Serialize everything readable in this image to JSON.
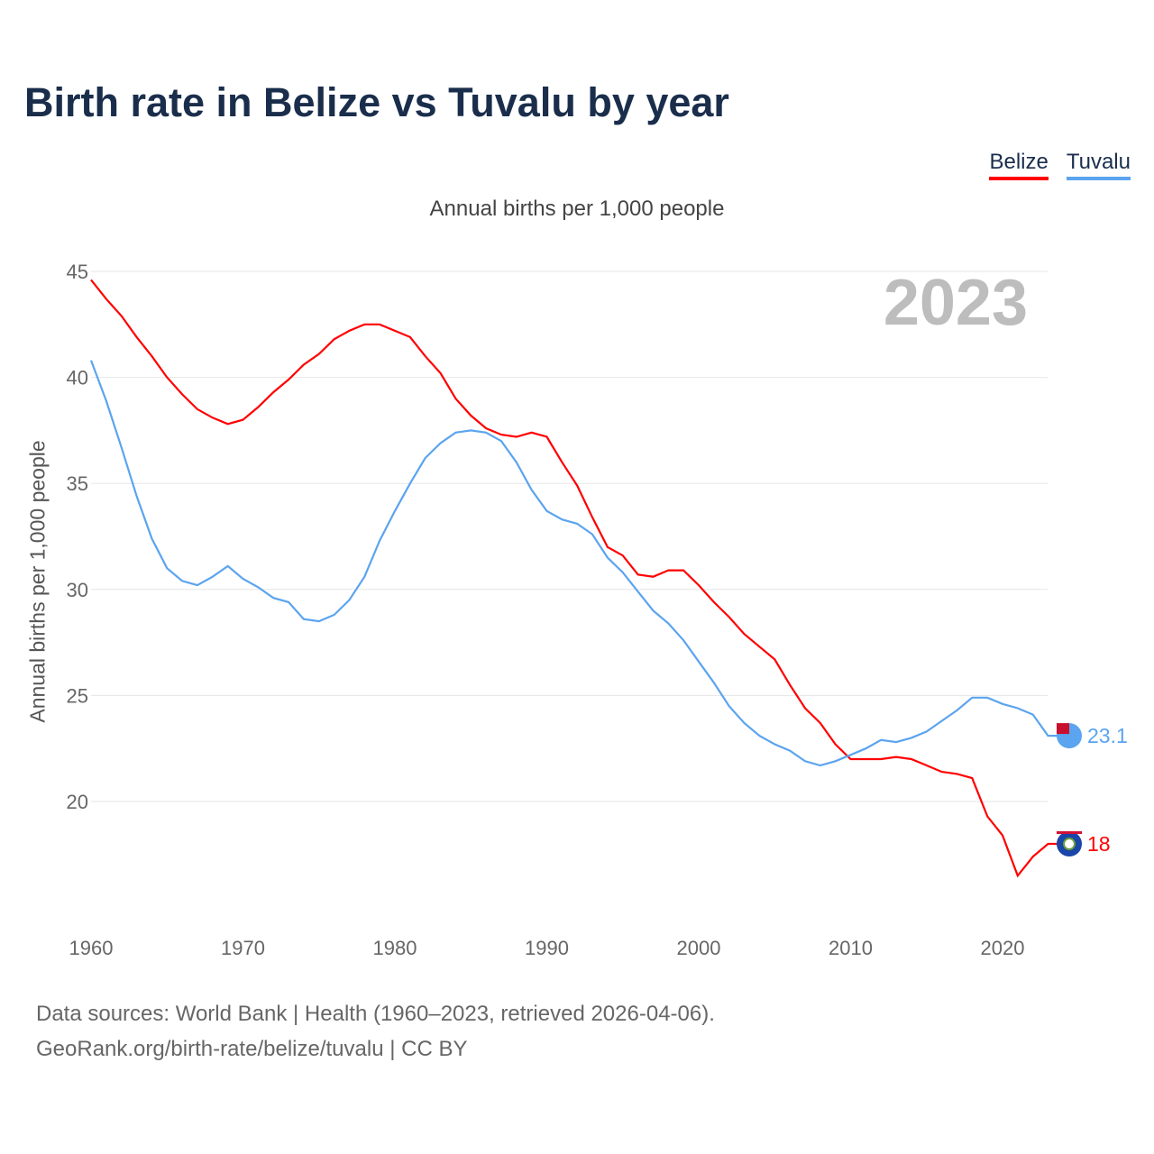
{
  "title": "Birth rate in Belize vs Tuvalu by year",
  "legend": [
    {
      "label": "Belize",
      "color": "#ff0000"
    },
    {
      "label": "Tuvalu",
      "color": "#5ba4ef"
    }
  ],
  "subtitle": "Annual births per 1,000 people",
  "year_label": "2023",
  "source_line1": "Data sources: World Bank | Health (1960–2023, retrieved 2026-04-06).",
  "source_line2": "GeoRank.org/birth-rate/belize/tuvalu | CC BY",
  "end_labels": {
    "belize": "18",
    "tuvalu": "23.1"
  },
  "chart_data": {
    "type": "line",
    "title": "Birth rate in Belize vs Tuvalu by year",
    "xlabel": "",
    "ylabel": "Annual births per 1,000 people",
    "xlim": [
      1960,
      2023
    ],
    "ylim": [
      15,
      45
    ],
    "xticks": [
      1960,
      1970,
      1980,
      1990,
      2000,
      2010,
      2020
    ],
    "yticks": [
      20,
      25,
      30,
      35,
      40,
      45
    ],
    "x_start": 1960,
    "series": [
      {
        "name": "Belize",
        "color": "#ff0000",
        "values": [
          44.6,
          43.7,
          42.9,
          41.9,
          41.0,
          40.0,
          39.2,
          38.5,
          38.1,
          37.8,
          38.0,
          38.6,
          39.3,
          39.9,
          40.6,
          41.1,
          41.8,
          42.2,
          42.5,
          42.5,
          42.2,
          41.9,
          41.0,
          40.2,
          39.0,
          38.2,
          37.6,
          37.3,
          37.2,
          37.4,
          37.2,
          36.0,
          34.9,
          33.4,
          32.0,
          31.6,
          30.7,
          30.6,
          30.9,
          30.9,
          30.2,
          29.4,
          28.7,
          27.9,
          27.3,
          26.7,
          25.5,
          24.4,
          23.7,
          22.7,
          22.0,
          22.0,
          22.0,
          22.1,
          22.0,
          21.7,
          21.4,
          21.3,
          21.1,
          19.3,
          18.4,
          16.5,
          17.4,
          18.0
        ]
      },
      {
        "name": "Tuvalu",
        "color": "#5ba4ef",
        "values": [
          40.8,
          38.9,
          36.7,
          34.4,
          32.4,
          31.0,
          30.4,
          30.2,
          30.6,
          31.1,
          30.5,
          30.1,
          29.6,
          29.4,
          28.6,
          28.5,
          28.8,
          29.5,
          30.6,
          32.3,
          33.7,
          35.0,
          36.2,
          36.9,
          37.4,
          37.5,
          37.4,
          37.0,
          36.0,
          34.7,
          33.7,
          33.3,
          33.1,
          32.6,
          31.5,
          30.8,
          29.9,
          29.0,
          28.4,
          27.6,
          26.6,
          25.6,
          24.5,
          23.7,
          23.1,
          22.7,
          22.4,
          21.9,
          21.7,
          21.9,
          22.2,
          22.5,
          22.9,
          22.8,
          23.0,
          23.3,
          23.8,
          24.3,
          24.9,
          24.9,
          24.6,
          24.4,
          24.1,
          23.1
        ]
      }
    ]
  }
}
